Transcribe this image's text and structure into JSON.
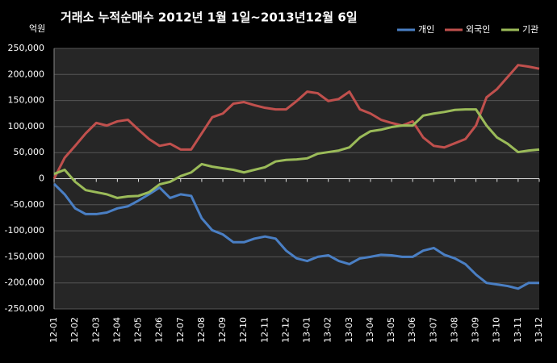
{
  "chart_data": {
    "type": "line",
    "title": "거래소 누적순매수 2012년 1월 1일~2013년12월 6일",
    "y_label": "억원",
    "legend": "top-right",
    "grid": true,
    "xlim": [
      0,
      23
    ],
    "xticks": [
      {
        "value": 0,
        "label": "12-01"
      },
      {
        "value": 1,
        "label": "12-02"
      },
      {
        "value": 2,
        "label": "12-03"
      },
      {
        "value": 3,
        "label": "12-04"
      },
      {
        "value": 4,
        "label": "12-05"
      },
      {
        "value": 5,
        "label": "12-06"
      },
      {
        "value": 6,
        "label": "12-07"
      },
      {
        "value": 7,
        "label": "12-08"
      },
      {
        "value": 8,
        "label": "12-09"
      },
      {
        "value": 9,
        "label": "12-10"
      },
      {
        "value": 10,
        "label": "12-11"
      },
      {
        "value": 11,
        "label": "12-12"
      },
      {
        "value": 12,
        "label": "13-01"
      },
      {
        "value": 13,
        "label": "13-02"
      },
      {
        "value": 14,
        "label": "13-03"
      },
      {
        "value": 15,
        "label": "13-04"
      },
      {
        "value": 16,
        "label": "13-05"
      },
      {
        "value": 17,
        "label": "13-06"
      },
      {
        "value": 18,
        "label": "13-07"
      },
      {
        "value": 19,
        "label": "13-08"
      },
      {
        "value": 20,
        "label": "13-09"
      },
      {
        "value": 21,
        "label": "13-10"
      },
      {
        "value": 22,
        "label": "13-11"
      },
      {
        "value": 23,
        "label": "13-12"
      }
    ],
    "ylim": [
      -250000,
      250000
    ],
    "yticks": [
      {
        "value": -250000,
        "label": "-250,000"
      },
      {
        "value": -200000,
        "label": "-200,000"
      },
      {
        "value": -150000,
        "label": "-150,000"
      },
      {
        "value": -100000,
        "label": "-100,000"
      },
      {
        "value": -50000,
        "label": "-50,000"
      },
      0,
      {
        "value": 50000,
        "label": "50,000"
      },
      {
        "value": 100000,
        "label": "100,000"
      },
      {
        "value": 150000,
        "label": "150,000"
      },
      {
        "value": 200000,
        "label": "200,000"
      },
      {
        "value": 250000,
        "label": "250,000"
      }
    ],
    "x": [
      0,
      0.5,
      1,
      1.5,
      2,
      2.5,
      3,
      3.5,
      4,
      4.5,
      5,
      5.5,
      6,
      6.5,
      7,
      7.5,
      8,
      8.5,
      9,
      9.5,
      10,
      10.5,
      11,
      11.5,
      12,
      12.5,
      13,
      13.5,
      14,
      14.5,
      15,
      15.5,
      16,
      16.5,
      17,
      17.5,
      18,
      18.5,
      19,
      19.5,
      20,
      20.5,
      21,
      21.5,
      22,
      22.5,
      23
    ],
    "series": [
      {
        "name": "개인",
        "color": "#4a7fc4",
        "values": [
          -10000,
          -30000,
          -57000,
          -68000,
          -68000,
          -65000,
          -57000,
          -53000,
          -42000,
          -30000,
          -17000,
          -37000,
          -30000,
          -33000,
          -76000,
          -99000,
          -107000,
          -122000,
          -122000,
          -115000,
          -111000,
          -115000,
          -138000,
          -153000,
          -158000,
          -150000,
          -147000,
          -158000,
          -164000,
          -153000,
          -150000,
          -146000,
          -147000,
          -150000,
          -150000,
          -138000,
          -133000,
          -146000,
          -153000,
          -164000,
          -184000,
          -200000,
          -203000,
          -206000,
          -211000,
          -200000,
          -200000
        ]
      },
      {
        "name": "외국인",
        "color": "#c0504d",
        "values": [
          0,
          40000,
          63000,
          87000,
          107000,
          102000,
          110000,
          113000,
          94000,
          76000,
          63000,
          67000,
          56000,
          56000,
          87000,
          118000,
          125000,
          144000,
          147000,
          141000,
          136000,
          133000,
          133000,
          149000,
          167000,
          164000,
          149000,
          153000,
          167000,
          133000,
          125000,
          113000,
          107000,
          102000,
          110000,
          79000,
          63000,
          60000,
          68000,
          76000,
          102000,
          156000,
          172000,
          195000,
          218000,
          215000,
          211000
        ]
      },
      {
        "name": "기관",
        "color": "#9bbb59",
        "values": [
          9000,
          17000,
          -6000,
          -22000,
          -26000,
          -30000,
          -37000,
          -34000,
          -33000,
          -26000,
          -11000,
          -6000,
          5000,
          12000,
          28000,
          23000,
          20000,
          17000,
          12000,
          17000,
          22000,
          33000,
          36000,
          37000,
          39000,
          48000,
          51000,
          54000,
          60000,
          79000,
          91000,
          94000,
          99000,
          102000,
          102000,
          121000,
          125000,
          128000,
          132000,
          133000,
          133000,
          102000,
          79000,
          67000,
          51000,
          54000,
          56000
        ]
      }
    ]
  }
}
